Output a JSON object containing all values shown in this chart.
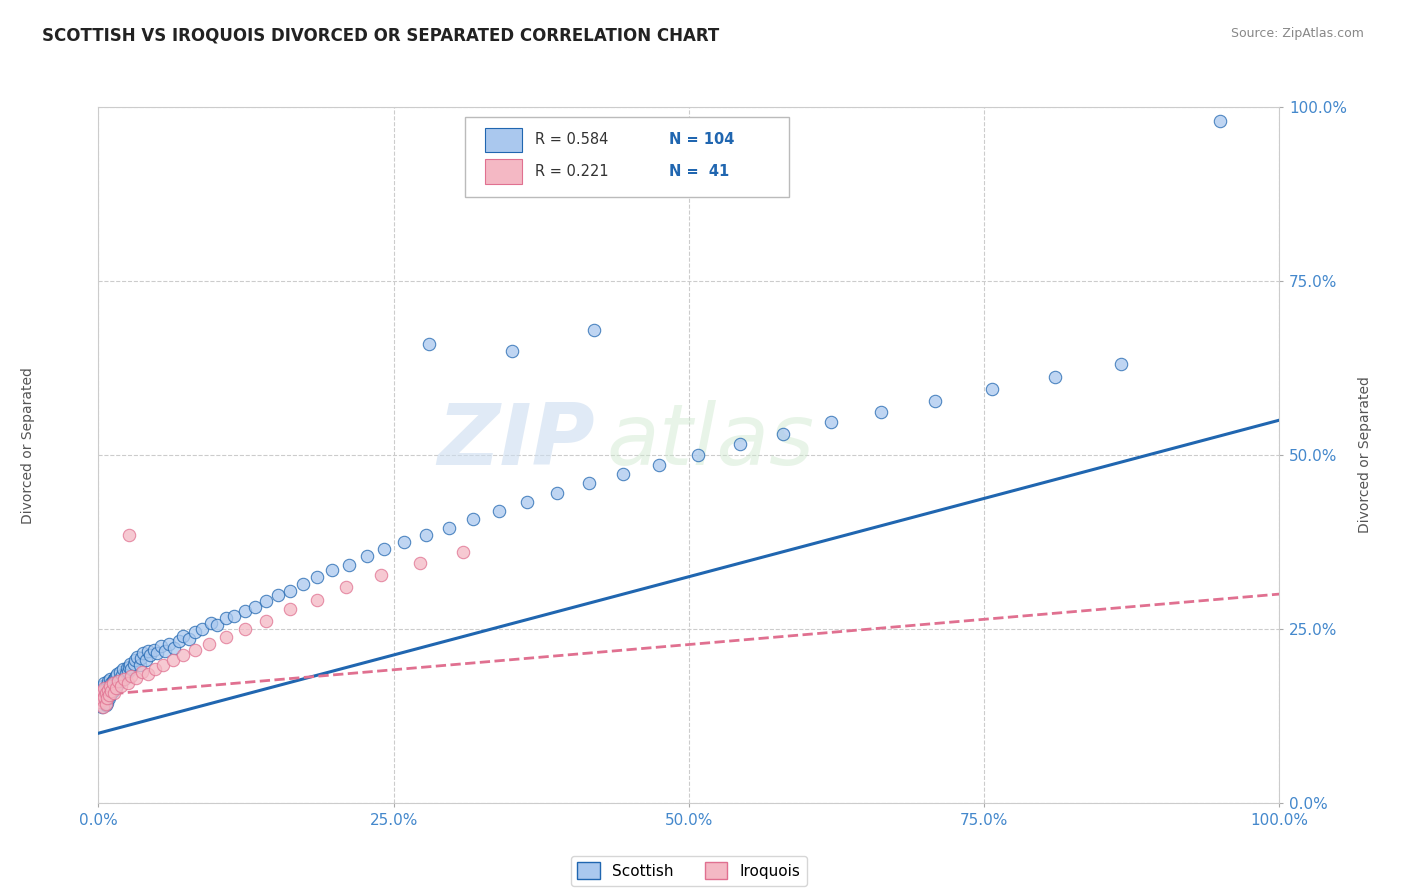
{
  "title": "SCOTTISH VS IROQUOIS DIVORCED OR SEPARATED CORRELATION CHART",
  "source": "Source: ZipAtlas.com",
  "xlabel": "",
  "ylabel": "Divorced or Separated",
  "xlim": [
    0.0,
    1.0
  ],
  "ylim": [
    0.0,
    1.0
  ],
  "xticks": [
    0.0,
    0.25,
    0.5,
    0.75,
    1.0
  ],
  "yticks": [
    0.0,
    0.25,
    0.5,
    0.75,
    1.0
  ],
  "xticklabels": [
    "0.0%",
    "25.0%",
    "50.0%",
    "75.0%",
    "100.0%"
  ],
  "yticklabels": [
    "0.0%",
    "25.0%",
    "50.0%",
    "75.0%",
    "100.0%"
  ],
  "background_color": "#ffffff",
  "grid_color": "#cccccc",
  "watermark_zip": "ZIP",
  "watermark_atlas": "atlas",
  "scottish_color": "#aac8ee",
  "iroquois_color": "#f4b8c4",
  "scottish_line_color": "#2066b0",
  "iroquois_line_color": "#e07090",
  "legend_R_scottish": "0.584",
  "legend_N_scottish": "104",
  "legend_R_iroquois": "0.221",
  "legend_N_iroquois": "41",
  "scottish_x": [
    0.001,
    0.002,
    0.003,
    0.003,
    0.004,
    0.004,
    0.005,
    0.005,
    0.005,
    0.006,
    0.006,
    0.007,
    0.007,
    0.007,
    0.008,
    0.008,
    0.009,
    0.009,
    0.01,
    0.01,
    0.01,
    0.011,
    0.011,
    0.012,
    0.012,
    0.013,
    0.013,
    0.014,
    0.014,
    0.015,
    0.015,
    0.016,
    0.016,
    0.017,
    0.018,
    0.018,
    0.019,
    0.02,
    0.021,
    0.022,
    0.023,
    0.024,
    0.025,
    0.026,
    0.027,
    0.028,
    0.03,
    0.031,
    0.033,
    0.035,
    0.036,
    0.038,
    0.04,
    0.042,
    0.044,
    0.047,
    0.05,
    0.053,
    0.056,
    0.06,
    0.064,
    0.068,
    0.072,
    0.077,
    0.082,
    0.088,
    0.095,
    0.1,
    0.108,
    0.115,
    0.124,
    0.133,
    0.142,
    0.152,
    0.162,
    0.173,
    0.185,
    0.198,
    0.212,
    0.227,
    0.242,
    0.259,
    0.277,
    0.297,
    0.317,
    0.339,
    0.363,
    0.388,
    0.415,
    0.444,
    0.475,
    0.508,
    0.543,
    0.58,
    0.62,
    0.663,
    0.708,
    0.757,
    0.81,
    0.866,
    0.35,
    0.28,
    0.42,
    0.95
  ],
  "scottish_y": [
    0.155,
    0.148,
    0.162,
    0.138,
    0.152,
    0.168,
    0.145,
    0.158,
    0.172,
    0.14,
    0.165,
    0.155,
    0.17,
    0.143,
    0.16,
    0.175,
    0.15,
    0.168,
    0.155,
    0.162,
    0.178,
    0.158,
    0.172,
    0.16,
    0.175,
    0.162,
    0.178,
    0.165,
    0.18,
    0.168,
    0.182,
    0.17,
    0.185,
    0.175,
    0.18,
    0.188,
    0.175,
    0.183,
    0.192,
    0.178,
    0.186,
    0.194,
    0.188,
    0.195,
    0.2,
    0.192,
    0.2,
    0.205,
    0.21,
    0.198,
    0.208,
    0.215,
    0.205,
    0.218,
    0.212,
    0.22,
    0.215,
    0.225,
    0.218,
    0.228,
    0.222,
    0.232,
    0.24,
    0.235,
    0.245,
    0.25,
    0.258,
    0.255,
    0.265,
    0.268,
    0.275,
    0.282,
    0.29,
    0.298,
    0.305,
    0.315,
    0.325,
    0.335,
    0.342,
    0.355,
    0.365,
    0.375,
    0.385,
    0.395,
    0.408,
    0.42,
    0.432,
    0.445,
    0.46,
    0.472,
    0.485,
    0.5,
    0.515,
    0.53,
    0.548,
    0.562,
    0.578,
    0.595,
    0.612,
    0.63,
    0.65,
    0.66,
    0.68,
    0.98
  ],
  "iroquois_x": [
    0.001,
    0.002,
    0.003,
    0.004,
    0.004,
    0.005,
    0.005,
    0.006,
    0.006,
    0.007,
    0.008,
    0.009,
    0.01,
    0.011,
    0.012,
    0.013,
    0.015,
    0.017,
    0.019,
    0.022,
    0.025,
    0.028,
    0.032,
    0.037,
    0.042,
    0.048,
    0.055,
    0.063,
    0.072,
    0.082,
    0.094,
    0.108,
    0.124,
    0.142,
    0.162,
    0.185,
    0.21,
    0.239,
    0.272,
    0.309,
    0.026
  ],
  "iroquois_y": [
    0.145,
    0.155,
    0.148,
    0.16,
    0.138,
    0.152,
    0.165,
    0.142,
    0.158,
    0.15,
    0.162,
    0.155,
    0.168,
    0.16,
    0.172,
    0.158,
    0.165,
    0.175,
    0.168,
    0.178,
    0.172,
    0.182,
    0.18,
    0.188,
    0.185,
    0.192,
    0.198,
    0.205,
    0.212,
    0.22,
    0.228,
    0.238,
    0.25,
    0.262,
    0.278,
    0.292,
    0.31,
    0.328,
    0.345,
    0.36,
    0.385
  ],
  "blue_line_x0": 0.0,
  "blue_line_y0": 0.1,
  "blue_line_x1": 1.0,
  "blue_line_y1": 0.55,
  "pink_line_x0": 0.0,
  "pink_line_y0": 0.155,
  "pink_line_x1": 1.0,
  "pink_line_y1": 0.3
}
